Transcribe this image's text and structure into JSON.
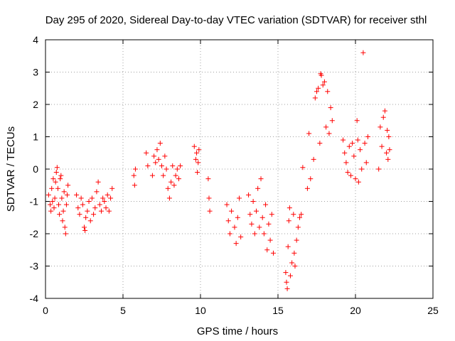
{
  "chart_data": {
    "type": "scatter",
    "title": "Day 295 of 2020, Sidereal Day-to-day VTEC variation (SDTVAR) for receiver sthl",
    "xlabel": "GPS time / hours",
    "ylabel": "SDTVAR / TECUs",
    "xlim": [
      0,
      25
    ],
    "ylim": [
      -4,
      4
    ],
    "xticks": [
      "0",
      "5",
      "10",
      "15",
      "20",
      "25"
    ],
    "yticks": [
      "-4",
      "-3",
      "-2",
      "-1",
      "0",
      "1",
      "2",
      "3",
      "4"
    ],
    "grid": true,
    "marker": "+",
    "series_color": "#ff0000",
    "series": [
      {
        "name": "SDTVAR",
        "points": [
          [
            0.2,
            -0.8
          ],
          [
            0.3,
            -1.1
          ],
          [
            0.35,
            -1.3
          ],
          [
            0.4,
            -0.6
          ],
          [
            0.45,
            -1.0
          ],
          [
            0.5,
            -0.3
          ],
          [
            0.55,
            -1.2
          ],
          [
            0.6,
            -0.9
          ],
          [
            0.65,
            -0.4
          ],
          [
            0.7,
            -0.1
          ],
          [
            0.75,
            0.05
          ],
          [
            0.8,
            -0.6
          ],
          [
            0.85,
            -1.1
          ],
          [
            0.9,
            -1.4
          ],
          [
            0.95,
            -0.3
          ],
          [
            1.0,
            -0.2
          ],
          [
            1.05,
            -0.9
          ],
          [
            1.1,
            -1.6
          ],
          [
            1.15,
            -1.3
          ],
          [
            1.2,
            -0.7
          ],
          [
            1.25,
            -1.8
          ],
          [
            1.3,
            -2.0
          ],
          [
            1.35,
            -1.1
          ],
          [
            1.4,
            -0.8
          ],
          [
            1.45,
            -0.5
          ],
          [
            2.0,
            -0.8
          ],
          [
            2.1,
            -1.2
          ],
          [
            2.2,
            -1.4
          ],
          [
            2.3,
            -0.9
          ],
          [
            2.4,
            -1.1
          ],
          [
            2.5,
            -1.8
          ],
          [
            2.55,
            -1.9
          ],
          [
            2.6,
            -1.5
          ],
          [
            2.7,
            -1.3
          ],
          [
            2.8,
            -1.0
          ],
          [
            2.9,
            -1.6
          ],
          [
            3.0,
            -0.9
          ],
          [
            3.1,
            -1.4
          ],
          [
            3.2,
            -1.2
          ],
          [
            3.3,
            -0.7
          ],
          [
            3.4,
            -0.4
          ],
          [
            3.5,
            -1.1
          ],
          [
            3.6,
            -1.3
          ],
          [
            3.7,
            -0.9
          ],
          [
            3.8,
            -1.0
          ],
          [
            3.9,
            -1.2
          ],
          [
            4.0,
            -0.8
          ],
          [
            4.1,
            -1.3
          ],
          [
            4.2,
            -0.9
          ],
          [
            4.3,
            -0.6
          ],
          [
            5.7,
            -0.2
          ],
          [
            5.75,
            -0.5
          ],
          [
            5.8,
            0.0
          ],
          [
            6.5,
            0.5
          ],
          [
            6.6,
            0.1
          ],
          [
            6.9,
            -0.2
          ],
          [
            7.0,
            0.4
          ],
          [
            7.1,
            0.2
          ],
          [
            7.2,
            0.6
          ],
          [
            7.3,
            0.3
          ],
          [
            7.4,
            0.8
          ],
          [
            7.5,
            0.1
          ],
          [
            7.6,
            -0.2
          ],
          [
            7.7,
            0.4
          ],
          [
            7.8,
            0.0
          ],
          [
            7.9,
            -0.6
          ],
          [
            8.0,
            -0.9
          ],
          [
            8.1,
            -0.4
          ],
          [
            8.2,
            0.1
          ],
          [
            8.3,
            -0.5
          ],
          [
            8.4,
            -0.2
          ],
          [
            8.5,
            0.0
          ],
          [
            8.6,
            -0.3
          ],
          [
            8.7,
            0.1
          ],
          [
            9.6,
            0.7
          ],
          [
            9.7,
            0.3
          ],
          [
            9.75,
            0.5
          ],
          [
            9.8,
            -0.1
          ],
          [
            9.85,
            0.2
          ],
          [
            9.9,
            0.6
          ],
          [
            10.5,
            -0.3
          ],
          [
            10.55,
            -0.9
          ],
          [
            10.6,
            -1.3
          ],
          [
            11.7,
            -1.1
          ],
          [
            11.8,
            -1.6
          ],
          [
            11.9,
            -2.0
          ],
          [
            12.0,
            -1.3
          ],
          [
            12.2,
            -1.8
          ],
          [
            12.3,
            -2.3
          ],
          [
            12.4,
            -1.5
          ],
          [
            12.5,
            -0.9
          ],
          [
            12.6,
            -2.1
          ],
          [
            13.1,
            -0.8
          ],
          [
            13.2,
            -1.4
          ],
          [
            13.3,
            -1.7
          ],
          [
            13.4,
            -1.0
          ],
          [
            13.5,
            -2.0
          ],
          [
            13.6,
            -1.3
          ],
          [
            13.7,
            -0.6
          ],
          [
            13.8,
            -1.8
          ],
          [
            13.9,
            -0.3
          ],
          [
            14.0,
            -1.5
          ],
          [
            14.1,
            -2.0
          ],
          [
            14.2,
            -1.1
          ],
          [
            14.3,
            -2.5
          ],
          [
            14.4,
            -1.7
          ],
          [
            14.5,
            -2.2
          ],
          [
            14.6,
            -1.4
          ],
          [
            14.7,
            -2.6
          ],
          [
            15.5,
            -3.2
          ],
          [
            15.55,
            -3.5
          ],
          [
            15.6,
            -3.7
          ],
          [
            15.65,
            -2.4
          ],
          [
            15.7,
            -1.6
          ],
          [
            15.75,
            -1.2
          ],
          [
            15.8,
            -3.3
          ],
          [
            15.9,
            -2.9
          ],
          [
            16.0,
            -1.4
          ],
          [
            16.05,
            -2.6
          ],
          [
            16.1,
            -3.0
          ],
          [
            16.2,
            -2.2
          ],
          [
            16.3,
            -1.8
          ],
          [
            16.4,
            -1.5
          ],
          [
            16.5,
            -1.4
          ],
          [
            16.6,
            0.05
          ],
          [
            16.9,
            -0.6
          ],
          [
            17.0,
            1.1
          ],
          [
            17.1,
            -0.3
          ],
          [
            17.3,
            0.3
          ],
          [
            17.4,
            2.2
          ],
          [
            17.5,
            2.4
          ],
          [
            17.6,
            2.5
          ],
          [
            17.7,
            0.8
          ],
          [
            17.75,
            2.95
          ],
          [
            17.8,
            2.9
          ],
          [
            17.9,
            2.6
          ],
          [
            18.0,
            2.7
          ],
          [
            18.1,
            1.3
          ],
          [
            18.2,
            2.4
          ],
          [
            18.3,
            1.1
          ],
          [
            18.4,
            1.9
          ],
          [
            18.5,
            1.5
          ],
          [
            19.2,
            0.9
          ],
          [
            19.3,
            0.5
          ],
          [
            19.4,
            0.2
          ],
          [
            19.5,
            -0.1
          ],
          [
            19.6,
            0.7
          ],
          [
            19.7,
            -0.2
          ],
          [
            19.8,
            0.8
          ],
          [
            19.9,
            0.4
          ],
          [
            20.0,
            -0.3
          ],
          [
            20.1,
            1.5
          ],
          [
            20.15,
            0.9
          ],
          [
            20.2,
            -0.4
          ],
          [
            20.3,
            0.6
          ],
          [
            20.4,
            0.0
          ],
          [
            20.5,
            3.6
          ],
          [
            20.6,
            0.8
          ],
          [
            20.7,
            0.2
          ],
          [
            20.8,
            1.0
          ],
          [
            21.5,
            0.0
          ],
          [
            21.6,
            1.3
          ],
          [
            21.7,
            0.7
          ],
          [
            21.8,
            1.6
          ],
          [
            21.9,
            1.8
          ],
          [
            22.0,
            0.5
          ],
          [
            22.05,
            1.2
          ],
          [
            22.1,
            0.3
          ],
          [
            22.15,
            1.0
          ],
          [
            22.2,
            0.6
          ]
        ]
      }
    ]
  }
}
